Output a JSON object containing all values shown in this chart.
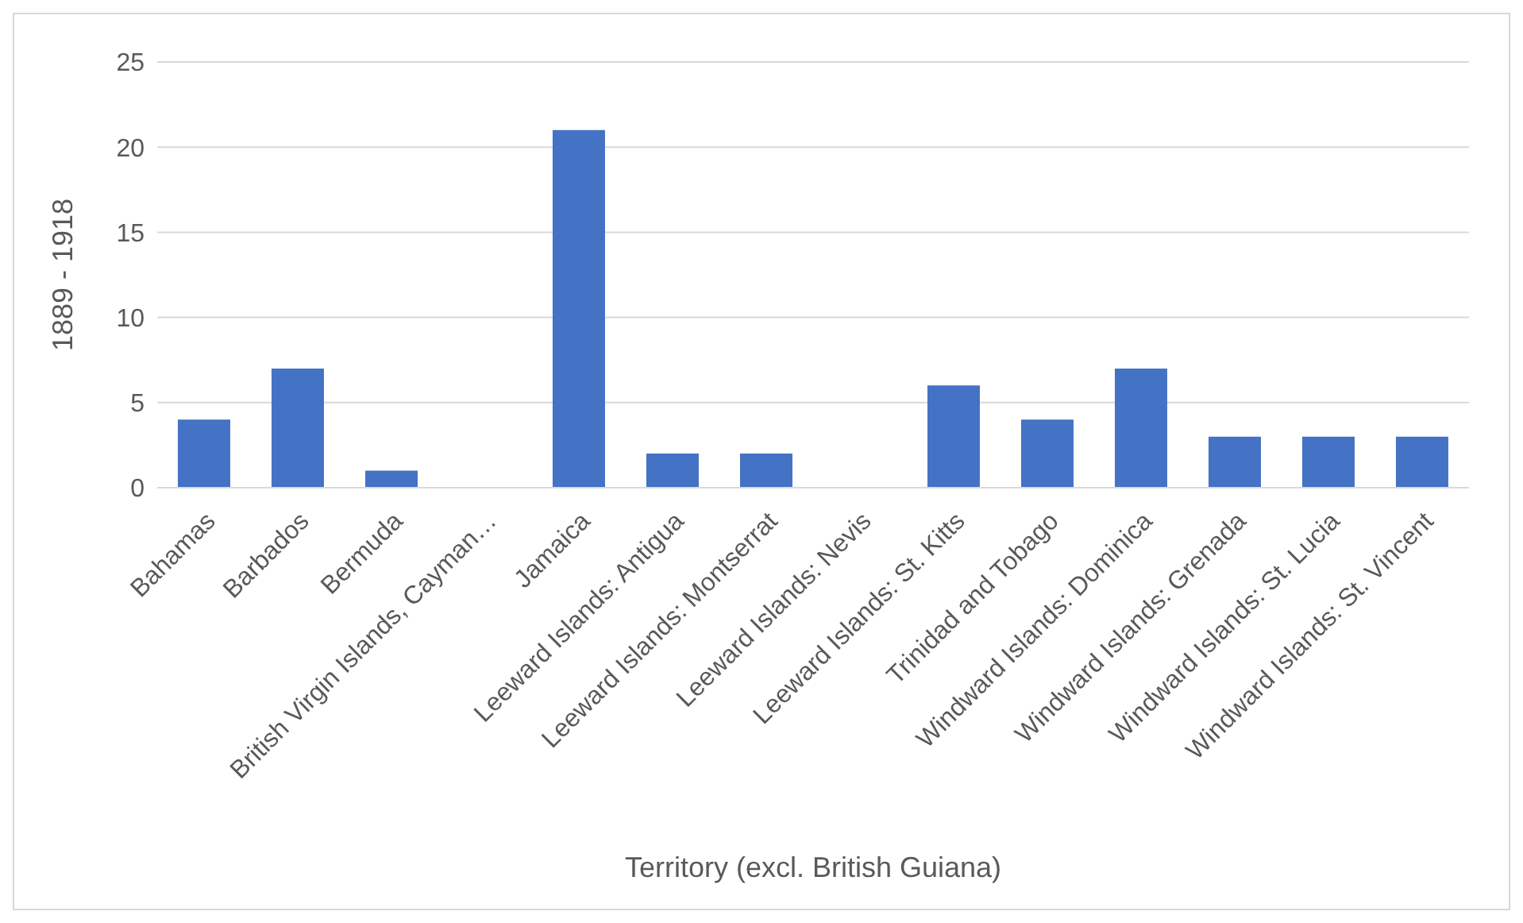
{
  "chart_data": {
    "type": "bar",
    "xlabel": "Territory (excl. British Guiana)",
    "ylabel": "1889 - 1918",
    "categories": [
      "Bahamas",
      "Barbados",
      "Bermuda",
      "British Virgin Islands, Cayman…",
      "Jamaica",
      "Leeward Islands: Antigua",
      "Leeward Islands: Montserrat",
      "Leeward Islands: Nevis",
      "Leeward Islands: St. Kitts",
      "Trinidad and Tobago",
      "Windward Islands: Dominica",
      "Windward Islands: Grenada",
      "Windward Islands: St. Lucia",
      "Windward Islands: St. Vincent"
    ],
    "values": [
      4,
      7,
      1,
      0,
      21,
      2,
      2,
      0,
      6,
      4,
      7,
      3,
      3,
      3
    ],
    "color": "#4472c4",
    "ylim": [
      0,
      25
    ],
    "yticks": [
      0,
      5,
      10,
      15,
      20,
      25
    ],
    "grid": "y"
  }
}
